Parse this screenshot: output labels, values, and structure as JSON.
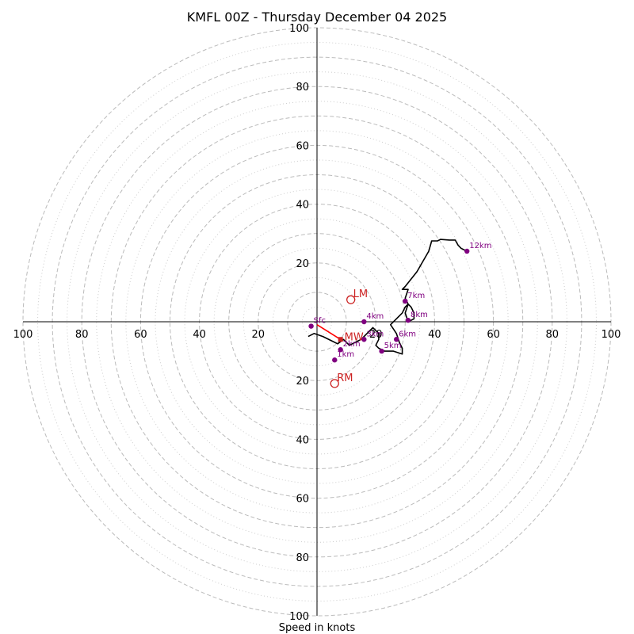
{
  "chart_data": {
    "type": "hodograph",
    "title": "KMFL 00Z - Thursday December 04 2025",
    "xlabel": "Speed in knots",
    "axis_max": 100,
    "axis_ticks": [
      20,
      40,
      60,
      80,
      100
    ],
    "tick_labels": [
      "20",
      "40",
      "60",
      "80",
      "100"
    ],
    "rings_dashed": [
      10,
      20,
      30,
      40,
      50,
      60,
      70,
      80,
      90,
      100
    ],
    "rings_dotted": [
      5,
      15,
      25,
      35,
      45,
      55,
      65,
      75,
      85,
      95
    ],
    "hodograph_trace": [
      [
        -3,
        -5
      ],
      [
        -1,
        -4
      ],
      [
        2,
        -5
      ],
      [
        5,
        -6.5
      ],
      [
        7,
        -7.5
      ],
      [
        9,
        -6
      ],
      [
        11,
        -8
      ],
      [
        13,
        -7
      ],
      [
        15,
        -6
      ],
      [
        16,
        -5
      ],
      [
        17,
        -4
      ],
      [
        18,
        -3
      ],
      [
        19,
        -2
      ],
      [
        20,
        -3
      ],
      [
        21,
        -4
      ],
      [
        21,
        -6
      ],
      [
        20,
        -8
      ],
      [
        21,
        -9
      ],
      [
        23,
        -10
      ],
      [
        26,
        -10
      ],
      [
        29,
        -11
      ],
      [
        29,
        -9
      ],
      [
        28,
        -7
      ],
      [
        27,
        -4
      ],
      [
        25,
        -1
      ],
      [
        27,
        1
      ],
      [
        29,
        3
      ],
      [
        30,
        5
      ],
      [
        31,
        6
      ],
      [
        32,
        5
      ],
      [
        33,
        3
      ],
      [
        33,
        1
      ],
      [
        31,
        0
      ],
      [
        30,
        3
      ],
      [
        31,
        6
      ],
      [
        30,
        8
      ],
      [
        31,
        11
      ],
      [
        30,
        11
      ],
      [
        29,
        11
      ],
      [
        30,
        12
      ],
      [
        34,
        17
      ],
      [
        38,
        24
      ],
      [
        39,
        27.5
      ],
      [
        41,
        27.5
      ],
      [
        42,
        28
      ],
      [
        45,
        27.8
      ],
      [
        47,
        27.8
      ],
      [
        48,
        26
      ],
      [
        49,
        25
      ],
      [
        51,
        24
      ]
    ],
    "height_markers": [
      {
        "label": "Sfc",
        "u": -2,
        "v": -1.5
      },
      {
        "label": "1km",
        "u": 6,
        "v": -13
      },
      {
        "label": "2km",
        "u": 8,
        "v": -9.5
      },
      {
        "label": "3km",
        "u": 16,
        "v": -6
      },
      {
        "label": "4km",
        "u": 16,
        "v": 0
      },
      {
        "label": "5km",
        "u": 22,
        "v": -10
      },
      {
        "label": "6km",
        "u": 27,
        "v": -6
      },
      {
        "label": "7km",
        "u": 30,
        "v": 7
      },
      {
        "label": "8km",
        "u": 31,
        "v": 0.5
      },
      {
        "label": "12km",
        "u": 51,
        "v": 24
      }
    ],
    "storm_motion": {
      "lm": {
        "label": "LM",
        "u": 11.5,
        "v": 7.5
      },
      "rm": {
        "label": "RM",
        "u": 6,
        "v": -21
      },
      "mw": {
        "label": "MW",
        "u": 8,
        "v": -6
      }
    },
    "shear_vector": {
      "from": [
        0,
        -1
      ],
      "to": [
        8,
        -6
      ]
    },
    "colors": {
      "trace": "#000000",
      "height_marker": "#800080",
      "storm_motion": "#cc2222",
      "shear": "#ff0000",
      "ring": "#bbbbbb",
      "axis": "#000000"
    }
  }
}
